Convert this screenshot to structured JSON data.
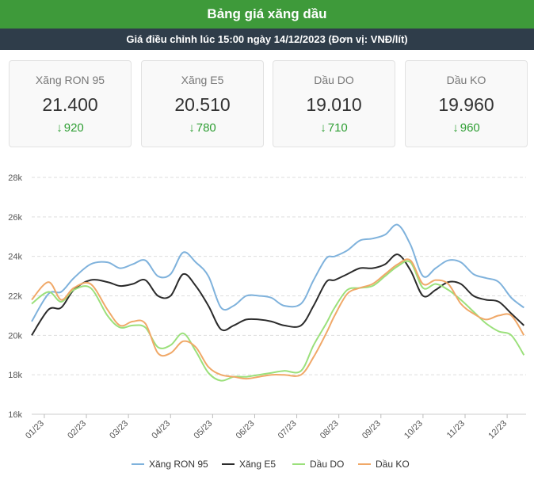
{
  "header": {
    "title": "Bảng giá xăng dầu",
    "subtitle": "Giá điều chỉnh lúc 15:00 ngày 14/12/2023 (Đơn vị: VNĐ/lít)"
  },
  "cards": [
    {
      "name": "Xăng RON 95",
      "price": "21.400",
      "change": "920"
    },
    {
      "name": "Xăng E5",
      "price": "20.510",
      "change": "780"
    },
    {
      "name": "Dầu DO",
      "price": "19.010",
      "change": "710"
    },
    {
      "name": "Dầu KO",
      "price": "19.960",
      "change": "960"
    }
  ],
  "icons": {
    "change_icon": "arrow-down-icon"
  },
  "colors": {
    "title_bg": "#3e9a3a",
    "subtitle_bg": "#2f3d4a",
    "down": "#2e9e33"
  },
  "chart_data": {
    "type": "line",
    "title": "",
    "xlabel": "",
    "ylabel": "",
    "ylim": [
      16000,
      28000
    ],
    "yticks": [
      16000,
      18000,
      20000,
      22000,
      24000,
      26000,
      28000
    ],
    "ytick_labels": [
      "16k",
      "18k",
      "20k",
      "22k",
      "24k",
      "26k",
      "28k"
    ],
    "xlim": [
      0,
      11.75
    ],
    "xtick_positions": [
      0.3,
      1.3,
      2.3,
      3.3,
      4.3,
      5.3,
      6.3,
      7.3,
      8.3,
      9.3,
      10.3,
      11.3
    ],
    "xtick_labels": [
      "01/23",
      "02/23",
      "03/23",
      "04/23",
      "05/23",
      "06/23",
      "07/23",
      "08/23",
      "09/23",
      "10/23",
      "11/23",
      "12/23"
    ],
    "grid": true,
    "legend": "bottom",
    "series": [
      {
        "name": "Xăng RON 95",
        "color": "#7fb2dc",
        "x": [
          0,
          0.4,
          0.7,
          1.0,
          1.4,
          1.8,
          2.1,
          2.4,
          2.7,
          3.0,
          3.3,
          3.6,
          3.9,
          4.2,
          4.5,
          4.8,
          5.1,
          5.4,
          5.7,
          6.0,
          6.4,
          6.7,
          7.0,
          7.2,
          7.5,
          7.8,
          8.1,
          8.4,
          8.7,
          9.0,
          9.3,
          9.6,
          9.9,
          10.2,
          10.5,
          10.8,
          11.1,
          11.4,
          11.7
        ],
        "y": [
          20700,
          22100,
          22200,
          22900,
          23600,
          23700,
          23400,
          23600,
          23800,
          23000,
          23100,
          24200,
          23700,
          23000,
          21400,
          21500,
          22000,
          22000,
          21900,
          21500,
          21600,
          22800,
          23900,
          24000,
          24300,
          24800,
          24900,
          25100,
          25600,
          24600,
          23000,
          23400,
          23800,
          23700,
          23100,
          22900,
          22700,
          21900,
          21400
        ]
      },
      {
        "name": "Xăng E5",
        "color": "#2b2b2b",
        "x": [
          0,
          0.4,
          0.7,
          1.0,
          1.4,
          1.8,
          2.1,
          2.4,
          2.7,
          3.0,
          3.3,
          3.6,
          3.9,
          4.2,
          4.5,
          4.8,
          5.1,
          5.4,
          5.7,
          6.0,
          6.4,
          6.7,
          7.0,
          7.2,
          7.5,
          7.8,
          8.1,
          8.4,
          8.7,
          9.0,
          9.3,
          9.6,
          9.9,
          10.2,
          10.5,
          10.8,
          11.1,
          11.4,
          11.7
        ],
        "y": [
          20000,
          21300,
          21400,
          22300,
          22800,
          22700,
          22500,
          22600,
          22800,
          22000,
          22000,
          23100,
          22500,
          21500,
          20300,
          20500,
          20800,
          20800,
          20700,
          20500,
          20500,
          21500,
          22700,
          22800,
          23100,
          23400,
          23400,
          23600,
          24100,
          23300,
          22000,
          22300,
          22700,
          22600,
          22000,
          21800,
          21700,
          21100,
          20500
        ]
      },
      {
        "name": "Dầu DO",
        "color": "#9be07b",
        "x": [
          0,
          0.4,
          0.7,
          1.0,
          1.4,
          1.8,
          2.1,
          2.4,
          2.7,
          3.0,
          3.3,
          3.6,
          3.9,
          4.2,
          4.5,
          4.8,
          5.1,
          5.4,
          5.7,
          6.0,
          6.4,
          6.7,
          7.0,
          7.2,
          7.5,
          7.8,
          8.1,
          8.4,
          8.7,
          9.0,
          9.3,
          9.6,
          9.9,
          10.2,
          10.5,
          10.8,
          11.1,
          11.4,
          11.7
        ],
        "y": [
          21600,
          22200,
          21700,
          22300,
          22400,
          21000,
          20400,
          20500,
          20400,
          19400,
          19500,
          20100,
          19200,
          18100,
          17700,
          17900,
          17900,
          18000,
          18100,
          18200,
          18200,
          19500,
          20600,
          21400,
          22300,
          22400,
          22500,
          23000,
          23500,
          23700,
          22400,
          22600,
          22300,
          21800,
          21200,
          20600,
          20200,
          20000,
          19000
        ]
      },
      {
        "name": "Dầu KO",
        "color": "#f0a868",
        "x": [
          0,
          0.4,
          0.7,
          1.0,
          1.4,
          1.8,
          2.1,
          2.4,
          2.7,
          3.0,
          3.3,
          3.6,
          3.9,
          4.2,
          4.5,
          4.8,
          5.1,
          5.4,
          5.7,
          6.0,
          6.4,
          6.7,
          7.0,
          7.2,
          7.5,
          7.8,
          8.1,
          8.4,
          8.7,
          9.0,
          9.3,
          9.6,
          9.9,
          10.2,
          10.5,
          10.8,
          11.1,
          11.4,
          11.7
        ],
        "y": [
          21800,
          22700,
          21800,
          22400,
          22600,
          21300,
          20500,
          20700,
          20600,
          19100,
          19100,
          19700,
          19400,
          18400,
          18000,
          17900,
          17800,
          17900,
          18000,
          18000,
          18000,
          18900,
          20100,
          21000,
          22100,
          22400,
          22600,
          23100,
          23600,
          23800,
          22600,
          22800,
          22600,
          21600,
          21100,
          20800,
          21000,
          21000,
          20000
        ]
      }
    ]
  }
}
